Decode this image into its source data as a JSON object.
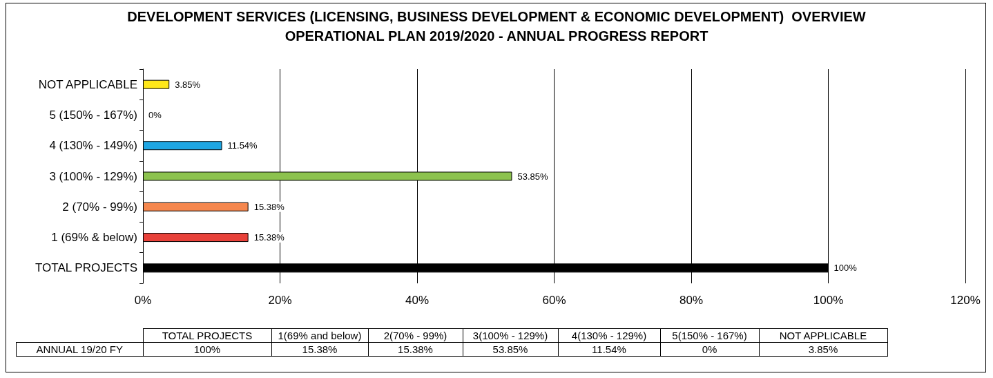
{
  "chart_data": {
    "type": "bar",
    "orientation": "horizontal",
    "title": "DEVELOPMENT SERVICES (LICENSING, BUSINESS DEVELOPMENT & ECONOMIC DEVELOPMENT)  OVERVIEW\nOPERATIONAL PLAN 2019/2020 - ANNUAL PROGRESS REPORT",
    "categories": [
      "NOT APPLICABLE",
      "5 (150% - 167%)",
      "4 (130% - 149%)",
      "3 (100% - 129%)",
      "2 (70% - 99%)",
      "1 (69% & below)",
      "TOTAL PROJECTS"
    ],
    "values": [
      3.85,
      0,
      11.54,
      53.85,
      15.38,
      15.38,
      100
    ],
    "colors": [
      "#ffe81a",
      "#ffe81a",
      "#1ea6e3",
      "#8cc24e",
      "#f5874e",
      "#e8413a",
      "#000000"
    ],
    "value_labels": [
      "3.85%",
      "0%",
      "11.54%",
      "53.85%",
      "15.38%",
      "15.38%",
      "100%"
    ],
    "xlim": [
      0,
      120
    ],
    "xticks": [
      {
        "value": 0,
        "label": "0%"
      },
      {
        "value": 20,
        "label": "20%"
      },
      {
        "value": 40,
        "label": "40%"
      },
      {
        "value": 60,
        "label": "60%"
      },
      {
        "value": 80,
        "label": "80%"
      },
      {
        "value": 100,
        "label": "100%"
      },
      {
        "value": 120,
        "label": "120%"
      }
    ],
    "grid": "x",
    "annotations": [
      "TOTAL PROJECTS",
      "1(69% and below)",
      "2(70% - 99%)",
      "3(100% - 129%)",
      "4(130% - 129%)",
      "5(150% - 167%)",
      "NOT APPLICABLE",
      "ANNUAL 19/20 FY"
    ]
  }
}
